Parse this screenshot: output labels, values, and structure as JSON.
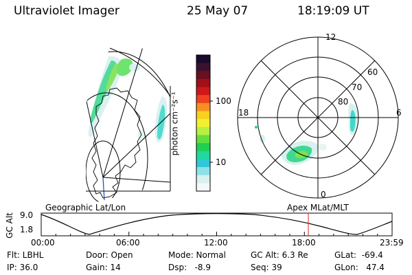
{
  "header": {
    "instrument": "Ultraviolet Imager",
    "date": "25 May 07",
    "time": "18:19:09 UT"
  },
  "colorbar": {
    "label": "photon cm⁻²s⁻¹",
    "ticks": [
      "100",
      "10"
    ],
    "colors": [
      "#1a0a2e",
      "#3a1230",
      "#6a1020",
      "#a01018",
      "#d01818",
      "#f04020",
      "#f89020",
      "#f8d020",
      "#f0f030",
      "#b8f040",
      "#60e040",
      "#20d050",
      "#20d8a0",
      "#30c8d8",
      "#90e0e8",
      "#d8f0f0",
      "#f4f8f8"
    ]
  },
  "polar_plot": {
    "mlt_labels": {
      "top": "12",
      "right": "6",
      "bottom": "0",
      "left": "18"
    },
    "lat_labels": [
      "60",
      "70",
      "80"
    ]
  },
  "timeline": {
    "y_axis_label": "GC Alt",
    "y_ticks": [
      "9.0",
      "1.8"
    ],
    "left_title": "Geographic Lat/Lon",
    "right_title": "Apex MLat/MLT",
    "x_ticks": [
      "00:00",
      "06:00",
      "12:00",
      "18:00",
      "23:59"
    ],
    "marker_time": "18:19",
    "marker_color": "#e02020"
  },
  "info": {
    "filter": "Flt: LBHL",
    "ip": "IP: 36.0",
    "door": "Door: Open",
    "gain": "Gain: 14",
    "mode": "Mode: Normal",
    "dsp": "Dsp:   -8.9",
    "gc_alt": "GC Alt: 6.3 Re",
    "seq": "Seq: 39",
    "glat": "GLat:  -69.4",
    "glon": "GLon:   47.4"
  }
}
